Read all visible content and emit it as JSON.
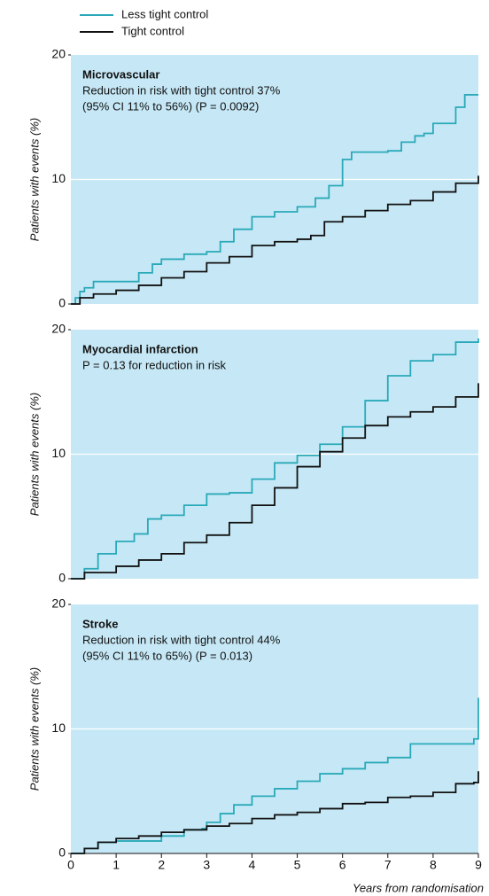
{
  "chart_data": [
    {
      "type": "step",
      "title": "Microvascular",
      "annotations": [
        "Reduction in risk with tight control 37%",
        "(95% CI 11% to 56%) (P = 0.0092)"
      ],
      "ylabel": "Patients with events (%)",
      "xlim": [
        0,
        9
      ],
      "ylim": [
        0,
        20
      ],
      "yticks": [
        0,
        10,
        20
      ],
      "grid": true,
      "series": [
        {
          "name": "Less tight control",
          "color": "#2aa9b8",
          "x": [
            0,
            0.1,
            0.2,
            0.3,
            0.5,
            1,
            1.5,
            1.8,
            2,
            2.5,
            3,
            3.3,
            3.6,
            4,
            4.5,
            5,
            5.4,
            5.7,
            6,
            6.2,
            7,
            7.3,
            7.6,
            7.8,
            8,
            8.5,
            8.7,
            9
          ],
          "values": [
            0,
            0.5,
            1,
            1.3,
            1.8,
            1.8,
            2.5,
            3.2,
            3.6,
            4,
            4.2,
            5,
            6,
            7,
            7.4,
            7.8,
            8.5,
            9.5,
            11.6,
            12.2,
            12.3,
            13,
            13.5,
            13.7,
            14.5,
            15.8,
            16.8,
            16.8
          ]
        },
        {
          "name": "Tight control",
          "color": "#111111",
          "x": [
            0,
            0.2,
            0.5,
            1,
            1.5,
            2,
            2.5,
            3,
            3.5,
            4,
            4.5,
            5,
            5.3,
            5.6,
            6,
            6.5,
            7,
            7.5,
            8,
            8.5,
            9
          ],
          "values": [
            0,
            0.5,
            0.8,
            1.1,
            1.5,
            2.1,
            2.6,
            3.3,
            3.8,
            4.7,
            5,
            5.2,
            5.5,
            6.6,
            7,
            7.5,
            8,
            8.3,
            9,
            9.7,
            10.3
          ]
        }
      ]
    },
    {
      "type": "step",
      "title": "Myocardial infarction",
      "annotations": [
        "P = 0.13 for reduction in risk"
      ],
      "ylabel": "Patients with events (%)",
      "xlim": [
        0,
        9
      ],
      "ylim": [
        0,
        20
      ],
      "yticks": [
        0,
        10,
        20
      ],
      "grid": true,
      "series": [
        {
          "color": "#2aa9b8",
          "x": [
            0,
            0.3,
            0.6,
            1,
            1.4,
            1.7,
            2,
            2.5,
            3,
            3.5,
            4,
            4.5,
            5,
            5.5,
            6,
            6.5,
            7,
            7.5,
            8,
            8.5,
            9
          ],
          "values": [
            0,
            0.8,
            2,
            3,
            3.6,
            4.8,
            5.1,
            5.9,
            6.8,
            6.9,
            8,
            9.3,
            9.9,
            10.8,
            12.2,
            14.3,
            16.3,
            17.5,
            18,
            19,
            19.3
          ]
        },
        {
          "color": "#111111",
          "x": [
            0,
            0.3,
            1,
            1.5,
            2,
            2.5,
            3,
            3.5,
            4,
            4.5,
            5,
            5.5,
            6,
            6.5,
            7,
            7.5,
            8,
            8.5,
            9
          ],
          "values": [
            0,
            0.5,
            1,
            1.5,
            2,
            2.9,
            3.5,
            4.5,
            5.9,
            7.3,
            9,
            10.2,
            11.3,
            12.3,
            13,
            13.4,
            13.8,
            14.6,
            15.7
          ]
        }
      ]
    },
    {
      "type": "step",
      "title": "Stroke",
      "annotations": [
        "Reduction in risk with tight control 44%",
        "(95% CI 11% to 65%) (P = 0.013)"
      ],
      "ylabel": "Patients with events (%)",
      "xlabel": "Years from randomisation",
      "xlim": [
        0,
        9
      ],
      "xticks": [
        0,
        1,
        2,
        3,
        4,
        5,
        6,
        7,
        8,
        9
      ],
      "ylim": [
        0,
        20
      ],
      "yticks": [
        0,
        10,
        20
      ],
      "grid": true,
      "series": [
        {
          "color": "#2aa9b8",
          "x": [
            0,
            0.3,
            0.6,
            1,
            1.5,
            2,
            2.5,
            2.9,
            3,
            3.3,
            3.6,
            4,
            4.5,
            5,
            5.5,
            6,
            6.5,
            7,
            7.5,
            8,
            8.5,
            8.9,
            9
          ],
          "values": [
            0,
            0.4,
            0.9,
            1,
            1,
            1.4,
            1.9,
            2,
            2.5,
            3.2,
            3.9,
            4.6,
            5.2,
            5.8,
            6.4,
            6.8,
            7.3,
            7.7,
            8.8,
            8.8,
            8.8,
            9.2,
            12.5
          ]
        },
        {
          "color": "#111111",
          "x": [
            0,
            0.3,
            0.6,
            1,
            1.5,
            2,
            2.5,
            3,
            3.5,
            4,
            4.5,
            5,
            5.5,
            6,
            6.5,
            7,
            7.5,
            8,
            8.5,
            8.9,
            9
          ],
          "values": [
            0,
            0.4,
            0.9,
            1.2,
            1.4,
            1.7,
            1.9,
            2.2,
            2.4,
            2.8,
            3.1,
            3.3,
            3.6,
            4,
            4.1,
            4.5,
            4.6,
            4.9,
            5.6,
            5.7,
            6.6
          ]
        }
      ]
    }
  ]
}
